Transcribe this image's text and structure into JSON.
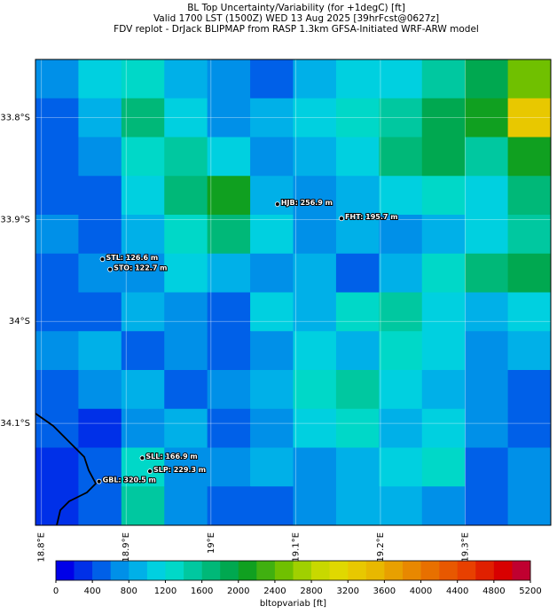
{
  "chart_data": {
    "type": "heatmap",
    "title": [
      "BL Top Uncertainty/Variability (for +1degC) [ft]",
      "Valid 1700 LST (1500Z) WED 13 Aug 2025 [39hrFcst@0627z]",
      "FDV replot - DrJack BLIPMAP from RASP 1.3km GFSA-Initiated WRF-ARW model"
    ],
    "xlim": [
      18.793,
      19.401
    ],
    "ylim": [
      -34.2,
      -33.743
    ],
    "xticks": [
      {
        "value": 18.8,
        "label": "18.8°E"
      },
      {
        "value": 18.9,
        "label": "18.9°E"
      },
      {
        "value": 19.0,
        "label": "19°E"
      },
      {
        "value": 19.1,
        "label": "19.1°E"
      },
      {
        "value": 19.2,
        "label": "19.2°E"
      },
      {
        "value": 19.3,
        "label": "19.3°E"
      }
    ],
    "yticks": [
      {
        "value": -33.8,
        "label": "33.8°S"
      },
      {
        "value": -33.9,
        "label": "33.9°S"
      },
      {
        "value": -34.0,
        "label": "34°S"
      },
      {
        "value": -34.1,
        "label": "34.1°S"
      }
    ],
    "grid": true,
    "values": [
      [
        600,
        1000,
        1200,
        800,
        600,
        400,
        800,
        1000,
        1000,
        1400,
        1800,
        2400
      ],
      [
        400,
        800,
        1600,
        1000,
        600,
        800,
        1000,
        1200,
        1400,
        1800,
        2000,
        3200
      ],
      [
        400,
        600,
        1200,
        1400,
        1000,
        600,
        800,
        1000,
        1600,
        1800,
        1400,
        2000
      ],
      [
        400,
        400,
        1000,
        1600,
        2000,
        800,
        600,
        800,
        1000,
        1200,
        1000,
        1600
      ],
      [
        600,
        400,
        800,
        1200,
        1600,
        1000,
        600,
        800,
        600,
        800,
        1000,
        1400
      ],
      [
        400,
        600,
        600,
        1000,
        800,
        600,
        800,
        400,
        800,
        1200,
        1600,
        1800
      ],
      [
        400,
        400,
        800,
        600,
        400,
        1000,
        800,
        1200,
        1400,
        1000,
        800,
        1000
      ],
      [
        600,
        800,
        400,
        600,
        400,
        600,
        1000,
        800,
        1200,
        1000,
        600,
        800
      ],
      [
        400,
        600,
        800,
        400,
        600,
        800,
        1200,
        1400,
        1000,
        800,
        600,
        400
      ],
      [
        400,
        200,
        600,
        800,
        400,
        600,
        1000,
        1200,
        800,
        1000,
        600,
        400
      ],
      [
        200,
        400,
        1200,
        600,
        600,
        800,
        600,
        800,
        1000,
        1200,
        400,
        600
      ],
      [
        200,
        400,
        1400,
        600,
        400,
        400,
        600,
        800,
        800,
        600,
        400,
        600
      ]
    ],
    "stations": [
      {
        "label": "HJB: 256.9 m",
        "lon": 19.0785,
        "lat": -33.885
      },
      {
        "label": "FHT: 195.7 m",
        "lon": 19.154,
        "lat": -33.899
      },
      {
        "label": "STL: 126.6 m",
        "lon": 18.872,
        "lat": -33.939
      },
      {
        "label": "STO: 122.7 m",
        "lon": 18.881,
        "lat": -33.949
      },
      {
        "label": "SLL: 166.9 m",
        "lon": 18.919,
        "lat": -34.134
      },
      {
        "label": "SLP: 229.3 m",
        "lon": 18.928,
        "lat": -34.147
      },
      {
        "label": "GBL: 320.5 m",
        "lon": 18.868,
        "lat": -34.157
      }
    ],
    "colorbar": {
      "label": "bltopvariab [ft]",
      "bounds": [
        0,
        200,
        400,
        600,
        800,
        1000,
        1200,
        1400,
        1600,
        1800,
        2000,
        2200,
        2400,
        2600,
        2800,
        3000,
        3200,
        3400,
        3600,
        3800,
        4000,
        4200,
        4400,
        4600,
        4800,
        5000,
        5200
      ],
      "colors": [
        "#0000e8",
        "#0030e8",
        "#0060e8",
        "#0090e8",
        "#00b0e8",
        "#00d0e0",
        "#00d8c8",
        "#00c8a0",
        "#00b878",
        "#00a850",
        "#10a020",
        "#40b010",
        "#70c000",
        "#a0d000",
        "#c8d800",
        "#e0d800",
        "#e8c800",
        "#e8b800",
        "#e8a000",
        "#e88800",
        "#e87000",
        "#e85800",
        "#e84000",
        "#e02000",
        "#d80000",
        "#c00030"
      ],
      "ticks": [
        0,
        400,
        800,
        1200,
        1600,
        2000,
        2400,
        2800,
        3200,
        3600,
        4000,
        4400,
        4800,
        5200
      ]
    }
  }
}
